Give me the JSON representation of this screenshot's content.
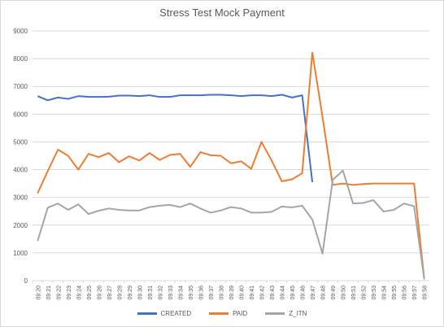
{
  "chart_data": {
    "type": "line",
    "title": "Stress Test Mock Payment",
    "xlabel": "",
    "ylabel": "",
    "ylim": [
      0,
      9000
    ],
    "yticks": [
      0,
      1000,
      2000,
      3000,
      4000,
      5000,
      6000,
      7000,
      8000,
      9000
    ],
    "grid": "horizontal",
    "legend": "bottom",
    "categories": [
      "09:20",
      "09:21",
      "09:22",
      "09:23",
      "09:24",
      "09:25",
      "09:26",
      "09:27",
      "09:28",
      "09:29",
      "09:30",
      "09:31",
      "09:32",
      "09:33",
      "09:34",
      "09:35",
      "09:36",
      "09:37",
      "09:38",
      "09:39",
      "09:40",
      "09:41",
      "09:42",
      "09:43",
      "09:44",
      "09:45",
      "09:46",
      "09:47",
      "09:48",
      "09:49",
      "09:50",
      "09:51",
      "09:52",
      "09:53",
      "09:54",
      "09:55",
      "09:56",
      "09:57",
      "09:58"
    ],
    "series": [
      {
        "name": "CREATED",
        "color": "#4472c4",
        "values": [
          6650,
          6500,
          6600,
          6550,
          6650,
          6620,
          6620,
          6630,
          6670,
          6670,
          6650,
          6680,
          6620,
          6620,
          6680,
          6680,
          6680,
          6700,
          6700,
          6680,
          6650,
          6680,
          6680,
          6650,
          6700,
          6600,
          6680,
          3550,
          null,
          null,
          null,
          null,
          null,
          null,
          null,
          null,
          null,
          null,
          null
        ]
      },
      {
        "name": "PAID",
        "color": "#ed7d31",
        "values": [
          3150,
          3950,
          4720,
          4500,
          4000,
          4570,
          4450,
          4600,
          4270,
          4480,
          4330,
          4600,
          4350,
          4530,
          4570,
          4100,
          4630,
          4520,
          4500,
          4230,
          4300,
          4030,
          5000,
          4330,
          3580,
          3650,
          3870,
          8220,
          5900,
          3450,
          3500,
          3450,
          3480,
          3500,
          3500,
          3500,
          3500,
          3500,
          50
        ]
      },
      {
        "name": "Z_ITN",
        "color": "#a5a5a5",
        "values": [
          1430,
          2630,
          2780,
          2550,
          2750,
          2400,
          2520,
          2600,
          2550,
          2530,
          2530,
          2650,
          2700,
          2730,
          2650,
          2780,
          2600,
          2450,
          2530,
          2650,
          2600,
          2450,
          2450,
          2480,
          2670,
          2640,
          2700,
          2200,
          970,
          3630,
          3970,
          2780,
          2800,
          2900,
          2490,
          2550,
          2780,
          2680,
          50
        ]
      }
    ]
  }
}
